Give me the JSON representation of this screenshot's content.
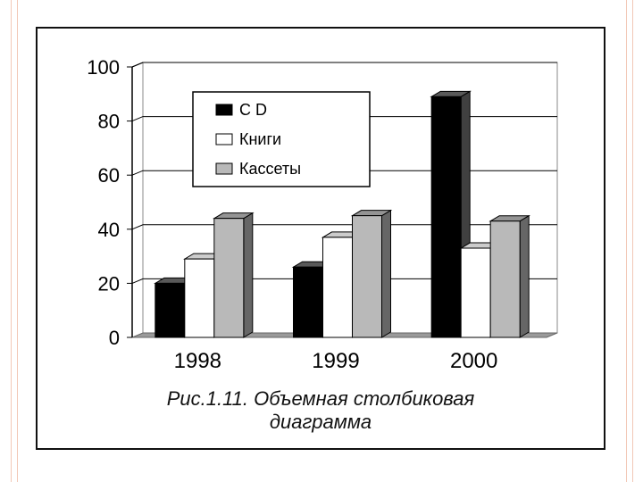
{
  "chart_data": {
    "type": "bar",
    "style": "3d-clustered",
    "categories": [
      "1998",
      "1999",
      "2000"
    ],
    "series": [
      {
        "name": "C D",
        "values": [
          20,
          26,
          89
        ],
        "color": "#000000"
      },
      {
        "name": "Книги",
        "values": [
          29,
          37,
          33
        ],
        "color": "#ffffff"
      },
      {
        "name": "Кассеты",
        "values": [
          44,
          45,
          43
        ],
        "color": "#b9b9b9"
      }
    ],
    "ylim": [
      0,
      100
    ],
    "yticks": [
      "0",
      "20",
      "40",
      "60",
      "80",
      "100"
    ],
    "grid": true,
    "legend_position": "top-center"
  },
  "caption": {
    "line1": "Рис.1.11. Объемная столбиковая",
    "line2": "диаграмма"
  }
}
